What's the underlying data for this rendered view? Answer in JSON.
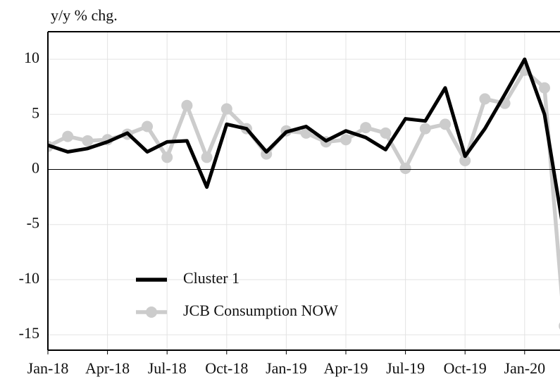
{
  "chart_data": {
    "type": "line",
    "title": "y/y % chg.",
    "categories": [
      "Jan-18",
      null,
      null,
      "Apr-18",
      null,
      null,
      "Jul-18",
      null,
      null,
      "Oct-18",
      null,
      null,
      "Jan-19",
      null,
      null,
      "Apr-19",
      null,
      null,
      "Jul-19",
      null,
      null,
      "Oct-19",
      null,
      null,
      "Jan-20",
      null,
      null
    ],
    "series": [
      {
        "name": "Cluster 1",
        "color": "#000000",
        "values": [
          2.2,
          1.6,
          1.9,
          2.5,
          3.3,
          1.6,
          2.5,
          2.6,
          -1.6,
          4.1,
          3.7,
          1.6,
          3.4,
          3.9,
          2.6,
          3.5,
          2.9,
          1.8,
          4.6,
          4.4,
          7.4,
          1.2,
          3.7,
          6.8,
          10.0,
          5.0,
          -6.0
        ]
      },
      {
        "name": "JCB Consumption NOW",
        "color": "#cccccc",
        "values": [
          2.1,
          3.0,
          2.6,
          2.7,
          3.2,
          3.9,
          1.1,
          5.8,
          1.1,
          5.5,
          3.7,
          1.4,
          3.5,
          3.3,
          2.5,
          2.7,
          3.8,
          3.3,
          0.1,
          3.7,
          4.1,
          0.8,
          6.4,
          6.0,
          9.0,
          7.4,
          -14.2
        ]
      }
    ],
    "ylim": [
      -16.4,
      12.5
    ],
    "yticks": [
      -15,
      -10,
      -5,
      0,
      5,
      10
    ],
    "grid": true
  }
}
